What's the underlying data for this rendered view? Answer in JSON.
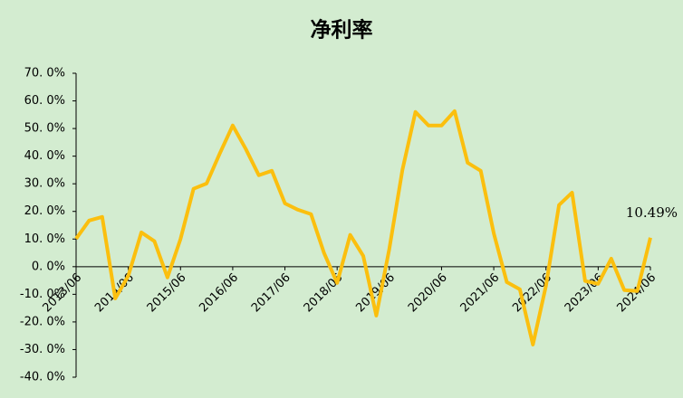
{
  "chart_data": {
    "type": "line",
    "title": "净利率",
    "categories": [
      "2013/06",
      null,
      null,
      null,
      "2014/06",
      null,
      null,
      null,
      "2015/06",
      null,
      null,
      null,
      "2016/06",
      null,
      null,
      null,
      "2017/06",
      null,
      null,
      null,
      "2018/06",
      null,
      null,
      null,
      "2019/06",
      null,
      null,
      null,
      "2020/06",
      null,
      null,
      null,
      "2021/06",
      null,
      null,
      null,
      "2022/06",
      null,
      null,
      null,
      "2023/06",
      null,
      null,
      null,
      "2024/06"
    ],
    "values": [
      10.1,
      16.7,
      18.0,
      -11.5,
      -3.3,
      12.4,
      9.2,
      -3.9,
      10.0,
      28.2,
      30.1,
      40.9,
      51.1,
      42.6,
      33.1,
      34.7,
      22.9,
      20.6,
      19.0,
      4.9,
      -5.9,
      11.5,
      3.9,
      -17.7,
      6.5,
      35.0,
      56.0,
      51.1,
      51.1,
      56.3,
      37.6,
      34.7,
      12.1,
      -5.6,
      -8.2,
      -28.2,
      -6.9,
      22.3,
      26.8,
      -5.2,
      -6.2,
      2.9,
      -8.5,
      -8.8,
      10.49
    ],
    "value_labels": [
      null,
      null,
      null,
      null,
      null,
      null,
      null,
      null,
      null,
      null,
      null,
      null,
      null,
      null,
      null,
      null,
      null,
      null,
      null,
      null,
      null,
      null,
      null,
      null,
      null,
      null,
      null,
      null,
      null,
      null,
      null,
      null,
      null,
      null,
      null,
      null,
      null,
      null,
      null,
      null,
      null,
      null,
      null,
      null,
      "10.49%"
    ],
    "color": "#fbbf0e",
    "ylim": [
      -40,
      70
    ],
    "yticks": [
      {
        "value": -40,
        "label": "-40. 0%"
      },
      {
        "value": -30,
        "label": "-30. 0%"
      },
      {
        "value": -20,
        "label": "-20. 0%"
      },
      {
        "value": -10,
        "label": "-10. 0%"
      },
      {
        "value": 0,
        "label": "0. 0%"
      },
      {
        "value": 10,
        "label": "10. 0%"
      },
      {
        "value": 20,
        "label": "20. 0%"
      },
      {
        "value": 30,
        "label": "30. 0%"
      },
      {
        "value": 40,
        "label": "40. 0%"
      },
      {
        "value": 50,
        "label": "50. 0%"
      },
      {
        "value": 60,
        "label": "60. 0%"
      },
      {
        "value": 70,
        "label": "70. 0%"
      }
    ],
    "grid": false
  }
}
